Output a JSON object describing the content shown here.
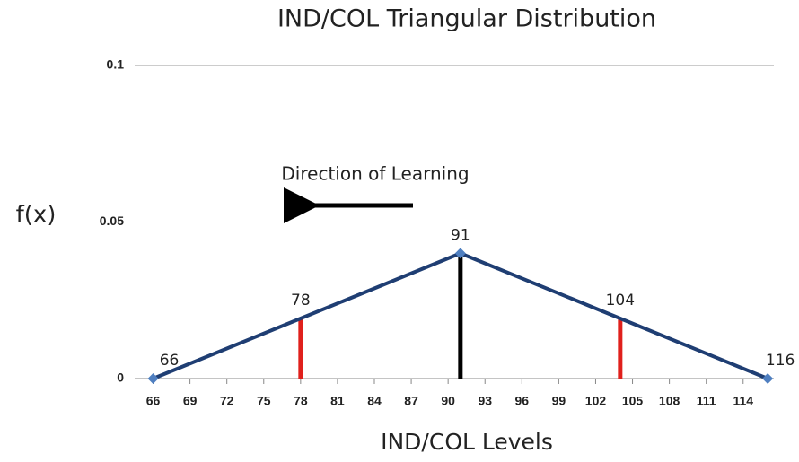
{
  "chart_data": {
    "type": "line",
    "title": "IND/COL Triangular Distribution",
    "x_label": "IND/COL Levels",
    "y_label": "f(x)",
    "annotation": "Direction of Learning",
    "x": [
      66,
      78,
      91,
      104,
      116
    ],
    "series": [
      {
        "color": "#1f3e73",
        "values": [
          0,
          0.0192,
          0.04,
          0.0192,
          0
        ]
      }
    ],
    "markers": [
      true,
      false,
      true,
      false,
      true
    ],
    "marker_color": "#4f7fc0",
    "drop_line_colors": [
      null,
      "#e0201c",
      "#000000",
      "#e0201c",
      null
    ],
    "xlim": [
      64.5,
      116.5
    ],
    "xticks": [
      66,
      69,
      72,
      75,
      78,
      81,
      84,
      87,
      90,
      93,
      96,
      99,
      102,
      105,
      108,
      111,
      114
    ],
    "ylim": [
      0,
      0.1
    ],
    "yticks": [
      0,
      0.05,
      0.1
    ],
    "grid": true
  }
}
